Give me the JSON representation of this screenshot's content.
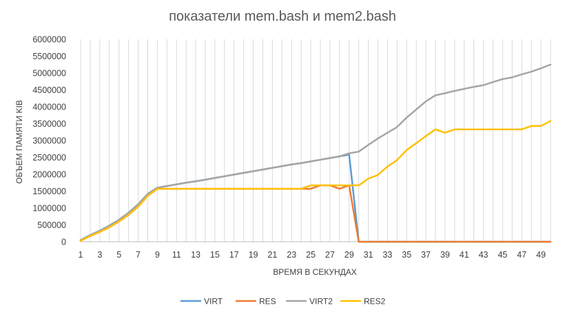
{
  "chart_data": {
    "type": "line",
    "title": "показатели mem.bash и mem2.bash",
    "xlabel": "ВРЕМЯ В СЕКУНДАХ",
    "ylabel": "ОБЪЕМ ПАМЯТИ KIB",
    "x": [
      1,
      2,
      3,
      4,
      5,
      6,
      7,
      8,
      9,
      10,
      11,
      12,
      13,
      14,
      15,
      16,
      17,
      18,
      19,
      20,
      21,
      22,
      23,
      24,
      25,
      26,
      27,
      28,
      29,
      30,
      31,
      32,
      33,
      34,
      35,
      36,
      37,
      38,
      39,
      40,
      41,
      42,
      43,
      44,
      45,
      46,
      47,
      48,
      49,
      50
    ],
    "x_tick_labels": [
      "1",
      "3",
      "5",
      "7",
      "9",
      "11",
      "13",
      "15",
      "17",
      "19",
      "21",
      "23",
      "25",
      "27",
      "29",
      "31",
      "33",
      "35",
      "37",
      "39",
      "41",
      "43",
      "45",
      "47",
      "49"
    ],
    "y_tick_labels": [
      "0",
      "500000",
      "1000000",
      "1500000",
      "2000000",
      "2500000",
      "3000000",
      "3500000",
      "4000000",
      "4500000",
      "5000000",
      "5500000",
      "6000000"
    ],
    "ylim": [
      0,
      6000000
    ],
    "legend_position": "bottom",
    "grid": "vertical",
    "series": [
      {
        "name": "VIRT",
        "color": "#5B9BD5",
        "values": [
          50000,
          200000,
          330000,
          480000,
          650000,
          860000,
          1110000,
          1420000,
          1600000,
          1650000,
          1700000,
          1750000,
          1790000,
          1840000,
          1890000,
          1940000,
          1990000,
          2040000,
          2090000,
          2140000,
          2190000,
          2240000,
          2290000,
          2330000,
          2380000,
          2430000,
          2480000,
          2530000,
          2580000,
          0,
          0,
          0,
          0,
          0,
          0,
          0,
          0,
          0,
          0,
          0,
          0,
          0,
          0,
          0,
          0,
          0,
          0,
          0,
          0,
          0
        ]
      },
      {
        "name": "RES",
        "color": "#ED7D31",
        "values": [
          30000,
          170000,
          290000,
          430000,
          600000,
          800000,
          1040000,
          1360000,
          1570000,
          1570000,
          1570000,
          1570000,
          1570000,
          1570000,
          1570000,
          1570000,
          1570000,
          1570000,
          1570000,
          1570000,
          1570000,
          1570000,
          1570000,
          1570000,
          1570000,
          1670000,
          1670000,
          1570000,
          1670000,
          0,
          0,
          0,
          0,
          0,
          0,
          0,
          0,
          0,
          0,
          0,
          0,
          0,
          0,
          0,
          0,
          0,
          0,
          0,
          0,
          0
        ]
      },
      {
        "name": "VIRT2",
        "color": "#A5A5A5",
        "values": [
          50000,
          200000,
          330000,
          480000,
          650000,
          860000,
          1110000,
          1420000,
          1600000,
          1650000,
          1700000,
          1750000,
          1790000,
          1840000,
          1890000,
          1940000,
          1990000,
          2040000,
          2090000,
          2140000,
          2190000,
          2240000,
          2290000,
          2330000,
          2380000,
          2430000,
          2480000,
          2530000,
          2620000,
          2670000,
          2870000,
          3060000,
          3230000,
          3400000,
          3680000,
          3920000,
          4160000,
          4340000,
          4400000,
          4470000,
          4530000,
          4590000,
          4640000,
          4730000,
          4820000,
          4870000,
          4960000,
          5040000,
          5140000,
          5250000
        ]
      },
      {
        "name": "RES2",
        "color": "#FFC000",
        "values": [
          30000,
          170000,
          290000,
          430000,
          600000,
          800000,
          1040000,
          1360000,
          1570000,
          1570000,
          1570000,
          1570000,
          1570000,
          1570000,
          1570000,
          1570000,
          1570000,
          1570000,
          1570000,
          1570000,
          1570000,
          1570000,
          1570000,
          1570000,
          1670000,
          1670000,
          1670000,
          1670000,
          1670000,
          1670000,
          1870000,
          1980000,
          2230000,
          2420000,
          2720000,
          2920000,
          3130000,
          3330000,
          3230000,
          3330000,
          3330000,
          3330000,
          3330000,
          3330000,
          3330000,
          3330000,
          3330000,
          3430000,
          3430000,
          3580000
        ]
      }
    ]
  }
}
